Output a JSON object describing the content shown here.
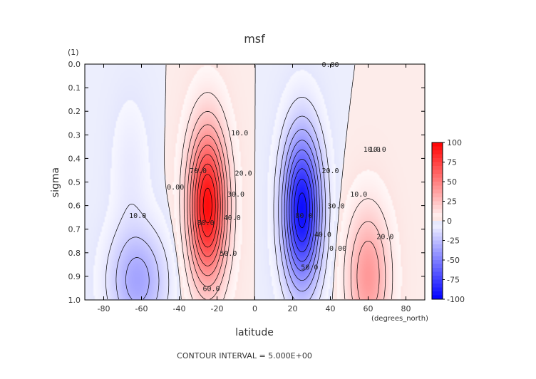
{
  "chart_data": {
    "type": "heatmap",
    "title": "msf",
    "xlabel": "latitude",
    "x_units": "(degrees_north)",
    "ylabel": "sigma",
    "y_units": "(1)",
    "footer": "CONTOUR INTERVAL = 5.000E+00",
    "xlim": [
      -90,
      90
    ],
    "ylim": [
      1.0,
      0.0
    ],
    "x_ticks": [
      "-80",
      "-60",
      "-40",
      "-20",
      "0",
      "20",
      "40",
      "60",
      "80"
    ],
    "x_tick_values": [
      -80,
      -60,
      -40,
      -20,
      0,
      20,
      40,
      60,
      80
    ],
    "y_ticks": [
      "0.0",
      "0.1",
      "0.2",
      "0.3",
      "0.4",
      "0.5",
      "0.6",
      "0.7",
      "0.8",
      "0.9",
      "1.0"
    ],
    "y_tick_values": [
      0.0,
      0.1,
      0.2,
      0.3,
      0.4,
      0.5,
      0.6,
      0.7,
      0.8,
      0.9,
      1.0
    ],
    "colorbar": {
      "range": [
        -100,
        100
      ],
      "ticks": [
        "100",
        "75",
        "50",
        "25",
        "0",
        "-25",
        "-50",
        "-75",
        "-100"
      ],
      "tick_values": [
        100,
        75,
        50,
        25,
        0,
        -25,
        -50,
        -75,
        -100
      ],
      "positive_color": "#ff0000",
      "negative_color": "#0000ff",
      "zero_color": "#ffffff"
    },
    "contour_interval": 5.0,
    "cells": [
      {
        "lat": -62,
        "sigma": 0.92,
        "amplitude": -35,
        "lat_width": 15,
        "sigma_width": 0.22
      },
      {
        "lat": -66,
        "sigma": 0.45,
        "amplitude": -8,
        "lat_width": 10,
        "sigma_width": 0.3
      },
      {
        "lat": -25,
        "sigma": 0.6,
        "amplitude": 95,
        "lat_width": 10,
        "sigma_width": 0.32
      },
      {
        "lat": 25,
        "sigma": 0.62,
        "amplitude": -95,
        "lat_width": 10,
        "sigma_width": 0.32
      },
      {
        "lat": 60,
        "sigma": 0.9,
        "amplitude": 40,
        "lat_width": 11,
        "sigma_width": 0.28
      }
    ],
    "contour_labels": [
      {
        "text": "0.00",
        "lat": 40,
        "sigma": 0.0
      },
      {
        "text": "10.0",
        "lat": -8,
        "sigma": 0.29
      },
      {
        "text": "10.0",
        "lat": 62,
        "sigma": 0.36
      },
      {
        "text": "10.0",
        "lat": -62,
        "sigma": 0.64
      },
      {
        "text": "70.0",
        "lat": -30,
        "sigma": 0.45
      },
      {
        "text": "20.0",
        "lat": -6,
        "sigma": 0.46
      },
      {
        "text": "30.0",
        "lat": -10,
        "sigma": 0.55
      },
      {
        "text": "40.0",
        "lat": -12,
        "sigma": 0.65
      },
      {
        "text": "80.0",
        "lat": -26,
        "sigma": 0.67
      },
      {
        "text": "50.0",
        "lat": -14,
        "sigma": 0.8
      },
      {
        "text": "60.0",
        "lat": -23,
        "sigma": 0.95
      },
      {
        "text": "0.00",
        "lat": -42,
        "sigma": 0.52
      },
      {
        "text": "10.0",
        "lat": 65,
        "sigma": 0.36
      },
      {
        "text": "80.0",
        "lat": 26,
        "sigma": 0.64
      },
      {
        "text": "30.0",
        "lat": 43,
        "sigma": 0.6
      },
      {
        "text": "20.0",
        "lat": 40,
        "sigma": 0.45
      },
      {
        "text": "40.0",
        "lat": 36,
        "sigma": 0.72
      },
      {
        "text": "0.00",
        "lat": 44,
        "sigma": 0.78
      },
      {
        "text": "50.0",
        "lat": 29,
        "sigma": 0.86
      },
      {
        "text": "20.0",
        "lat": 69,
        "sigma": 0.73
      },
      {
        "text": "10.0",
        "lat": 55,
        "sigma": 0.55
      }
    ]
  }
}
